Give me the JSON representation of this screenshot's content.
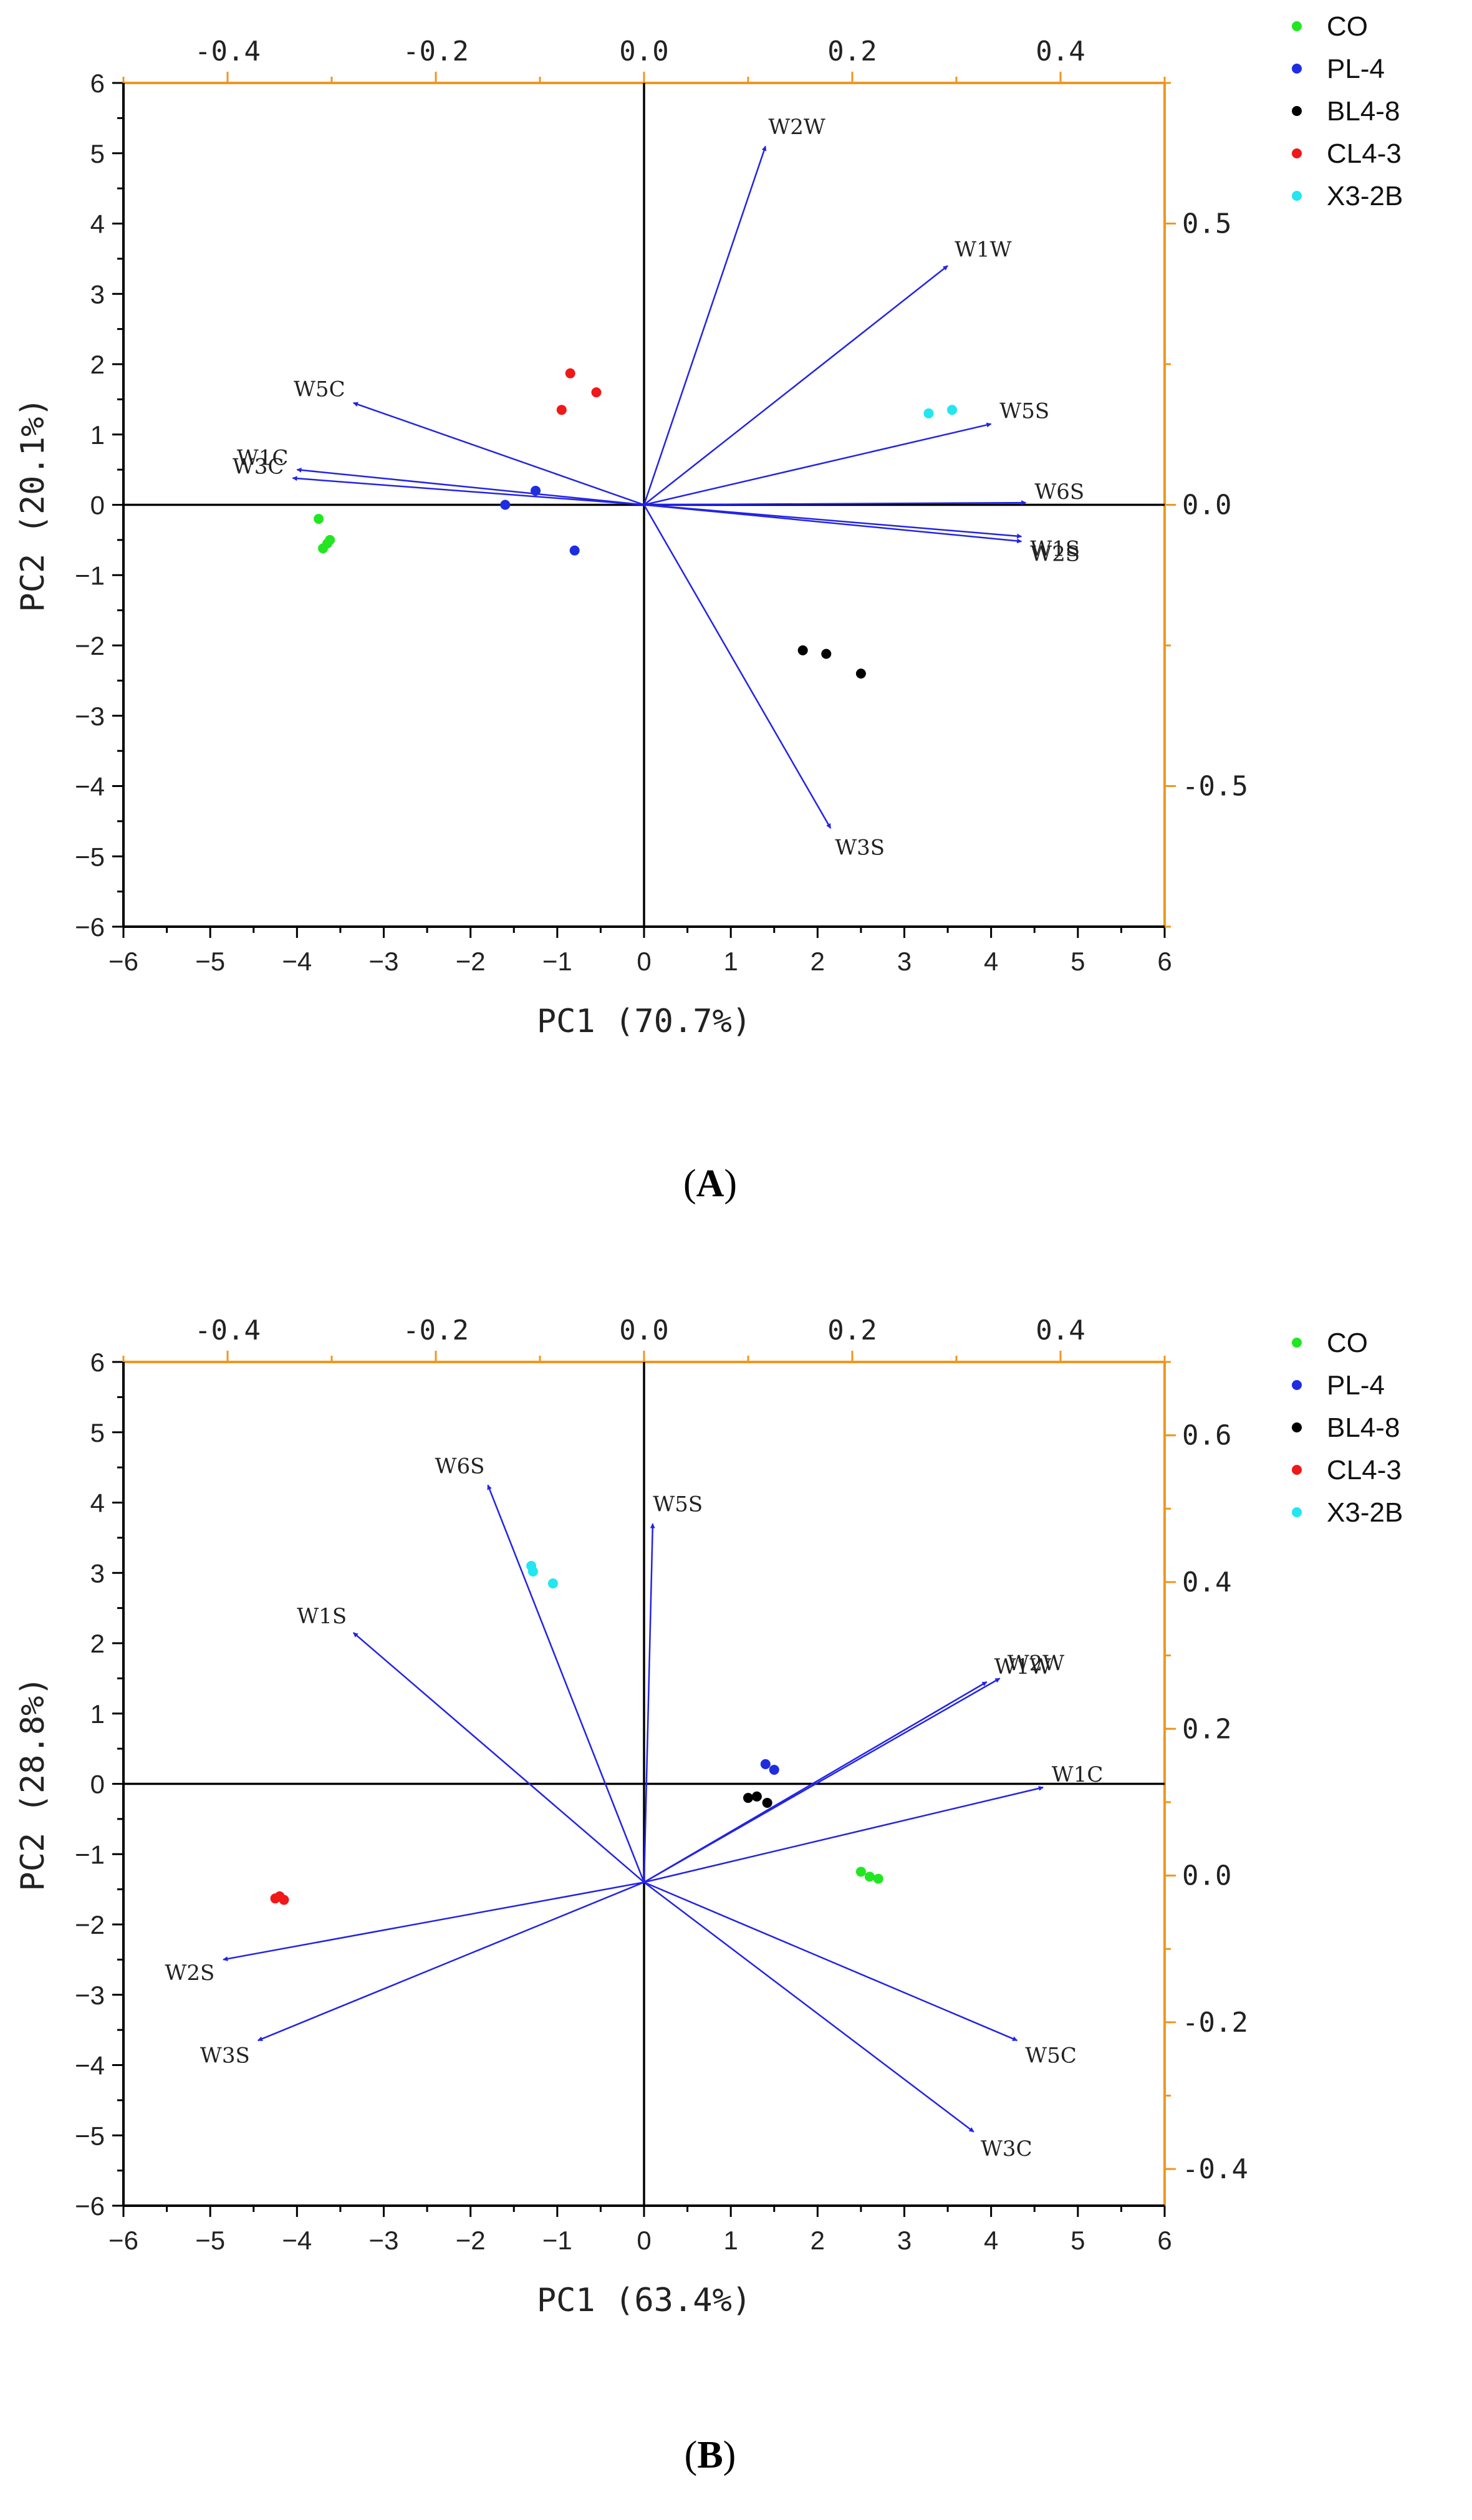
{
  "colors": {
    "vector": "#2323e6",
    "secondary_axis": "#f0961e",
    "primary_axis": "#000000",
    "CO": "#22e622",
    "PL-4": "#1f2de0",
    "BL4-8": "#000000",
    "CL4-3": "#f01818",
    "X3-2B": "#22e6f0"
  },
  "chart_data": [
    {
      "type": "scatter",
      "subtype": "pca-biplot",
      "panel_label": "A",
      "xlabel": "PC1 (70.7%)",
      "ylabel": "PC2 (20.1%)",
      "xlim": [
        -6,
        6
      ],
      "ylim": [
        -6,
        6
      ],
      "x_ticks": [
        -6,
        -5,
        -4,
        -3,
        -2,
        -1,
        0,
        1,
        2,
        3,
        4,
        5,
        6
      ],
      "y_ticks": [
        -6,
        -5,
        -4,
        -3,
        -2,
        -1,
        0,
        1,
        2,
        3,
        4,
        5,
        6
      ],
      "secondary_x": {
        "lim": [
          -0.5,
          0.5
        ],
        "ticks": [
          "-0.4",
          "-0.2",
          "0.0",
          "0.2",
          "0.4"
        ],
        "tick_values": [
          -0.4,
          -0.2,
          0.0,
          0.2,
          0.4
        ]
      },
      "secondary_y": {
        "lim": [
          -0.75,
          0.75
        ],
        "ticks": [
          "0.5",
          "0.0",
          "-0.5"
        ],
        "tick_values": [
          0.5,
          0.0,
          -0.5
        ]
      },
      "origin": [
        0,
        0
      ],
      "legend": [
        "CO",
        "PL-4",
        "BL4-8",
        "CL4-3",
        "X3-2B"
      ],
      "legend_position": "top-right",
      "series": [
        {
          "name": "CO",
          "points": [
            [
              -3.75,
              -0.2
            ],
            [
              -3.65,
              -0.55
            ],
            [
              -3.7,
              -0.62
            ],
            [
              -3.62,
              -0.5
            ]
          ]
        },
        {
          "name": "PL-4",
          "points": [
            [
              -1.25,
              0.2
            ],
            [
              -1.6,
              0.0
            ],
            [
              -0.8,
              -0.65
            ]
          ]
        },
        {
          "name": "BL4-8",
          "points": [
            [
              1.83,
              -2.07
            ],
            [
              2.1,
              -2.12
            ],
            [
              2.5,
              -2.4
            ]
          ]
        },
        {
          "name": "CL4-3",
          "points": [
            [
              -0.85,
              1.87
            ],
            [
              -0.55,
              1.6
            ],
            [
              -0.95,
              1.35
            ]
          ]
        },
        {
          "name": "X3-2B",
          "points": [
            [
              3.28,
              1.3
            ],
            [
              3.55,
              1.35
            ]
          ]
        }
      ],
      "loadings": [
        {
          "name": "W2W",
          "end": [
            1.4,
            5.1
          ]
        },
        {
          "name": "W1W",
          "end": [
            3.5,
            3.4
          ]
        },
        {
          "name": "W5S",
          "end": [
            4.0,
            1.15
          ]
        },
        {
          "name": "W6S",
          "end": [
            4.4,
            0.03
          ]
        },
        {
          "name": "W1S",
          "end": [
            4.35,
            -0.45
          ]
        },
        {
          "name": "W2S",
          "end": [
            4.35,
            -0.52
          ]
        },
        {
          "name": "W3S",
          "end": [
            2.15,
            -4.6
          ]
        },
        {
          "name": "W5C",
          "end": [
            -3.35,
            1.45
          ]
        },
        {
          "name": "W1C",
          "end": [
            -4.0,
            0.5
          ]
        },
        {
          "name": "W3C",
          "end": [
            -4.05,
            0.38
          ]
        }
      ]
    },
    {
      "type": "scatter",
      "subtype": "pca-biplot",
      "panel_label": "B",
      "xlabel": "PC1 (63.4%)",
      "ylabel": "PC2 (28.8%)",
      "xlim": [
        -6,
        6
      ],
      "ylim": [
        -6,
        6
      ],
      "x_ticks": [
        -6,
        -5,
        -4,
        -3,
        -2,
        -1,
        0,
        1,
        2,
        3,
        4,
        5,
        6
      ],
      "y_ticks": [
        -6,
        -5,
        -4,
        -3,
        -2,
        -1,
        0,
        1,
        2,
        3,
        4,
        5,
        6
      ],
      "secondary_x": {
        "lim": [
          -0.5,
          0.5
        ],
        "ticks": [
          "-0.4",
          "-0.2",
          "0.0",
          "0.2",
          "0.4"
        ],
        "tick_values": [
          -0.4,
          -0.2,
          0.0,
          0.2,
          0.4
        ]
      },
      "secondary_y": {
        "lim": [
          -0.45,
          0.7
        ],
        "ticks": [
          "0.6",
          "0.4",
          "0.2",
          "0.0",
          "-0.2",
          "-0.4"
        ],
        "tick_values": [
          0.6,
          0.4,
          0.2,
          0.0,
          -0.2,
          -0.4
        ]
      },
      "origin": [
        0,
        -1.4
      ],
      "legend": [
        "CO",
        "PL-4",
        "BL4-8",
        "CL4-3",
        "X3-2B"
      ],
      "legend_position": "top-right",
      "series": [
        {
          "name": "CO",
          "points": [
            [
              2.5,
              -1.25
            ],
            [
              2.6,
              -1.32
            ],
            [
              2.7,
              -1.35
            ]
          ]
        },
        {
          "name": "PL-4",
          "points": [
            [
              1.4,
              0.28
            ],
            [
              1.5,
              0.2
            ]
          ]
        },
        {
          "name": "BL4-8",
          "points": [
            [
              1.2,
              -0.2
            ],
            [
              1.3,
              -0.18
            ],
            [
              1.42,
              -0.27
            ]
          ]
        },
        {
          "name": "CL4-3",
          "points": [
            [
              -4.2,
              -1.6
            ],
            [
              -4.15,
              -1.65
            ],
            [
              -4.25,
              -1.63
            ]
          ]
        },
        {
          "name": "X3-2B",
          "points": [
            [
              -1.3,
              3.1
            ],
            [
              -1.05,
              2.85
            ],
            [
              -1.28,
              3.02
            ]
          ]
        }
      ],
      "loadings": [
        {
          "name": "W6S",
          "end": [
            -1.8,
            4.25
          ]
        },
        {
          "name": "W5S",
          "end": [
            0.1,
            3.7
          ]
        },
        {
          "name": "W1S",
          "end": [
            -3.35,
            2.15
          ]
        },
        {
          "name": "W1W",
          "end": [
            3.95,
            1.45
          ]
        },
        {
          "name": "W2W",
          "end": [
            4.1,
            1.5
          ]
        },
        {
          "name": "W1C",
          "end": [
            4.6,
            -0.05
          ]
        },
        {
          "name": "W5C",
          "end": [
            4.3,
            -3.65
          ]
        },
        {
          "name": "W3C",
          "end": [
            3.8,
            -4.95
          ]
        },
        {
          "name": "W2S",
          "end": [
            -4.85,
            -2.5
          ]
        },
        {
          "name": "W3S",
          "end": [
            -4.45,
            -3.65
          ]
        }
      ]
    }
  ]
}
